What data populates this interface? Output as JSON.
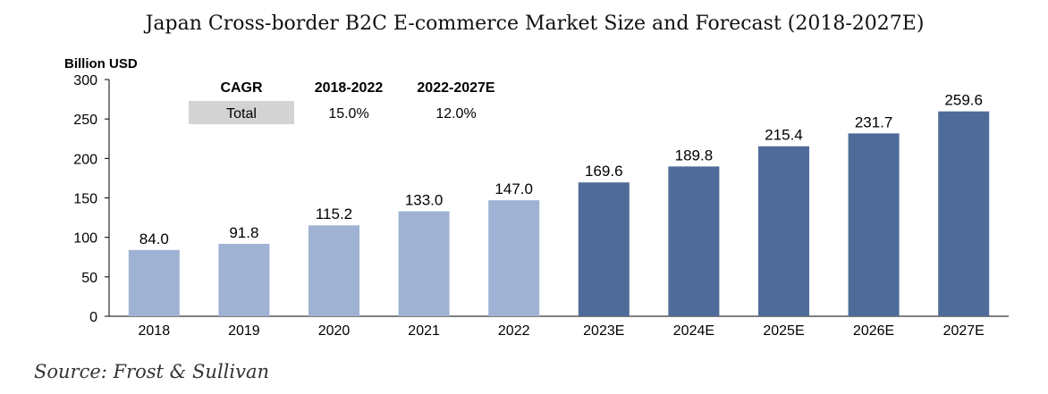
{
  "chart_data": {
    "type": "bar",
    "title": "Japan Cross-border B2C E-commerce Market Size and Forecast (2018-2027E)",
    "ylabel": "Billion USD",
    "ylim": [
      0,
      300
    ],
    "yticks": [
      0,
      50,
      100,
      150,
      200,
      250,
      300
    ],
    "categories": [
      "2018",
      "2019",
      "2020",
      "2021",
      "2022",
      "2023E",
      "2024E",
      "2025E",
      "2026E",
      "2027E"
    ],
    "values": [
      84.0,
      91.8,
      115.2,
      133.0,
      147.0,
      169.6,
      189.8,
      215.4,
      231.7,
      259.6
    ],
    "value_labels": [
      "84.0",
      "91.8",
      "115.2",
      "133.0",
      "147.0",
      "169.6",
      "189.8",
      "215.4",
      "231.7",
      "259.6"
    ],
    "grid": false,
    "colors": {
      "actual": "#9fb2d4",
      "forecast": "#4f6b99"
    },
    "forecast_start_index": 5
  },
  "cagr_table": {
    "header_label": "CAGR",
    "period_1": "2018-2022",
    "period_2": "2022-2027E",
    "row_label": "Total",
    "value_1": "15.0%",
    "value_2": "12.0%"
  },
  "source": "Source: Frost  & Sullivan"
}
